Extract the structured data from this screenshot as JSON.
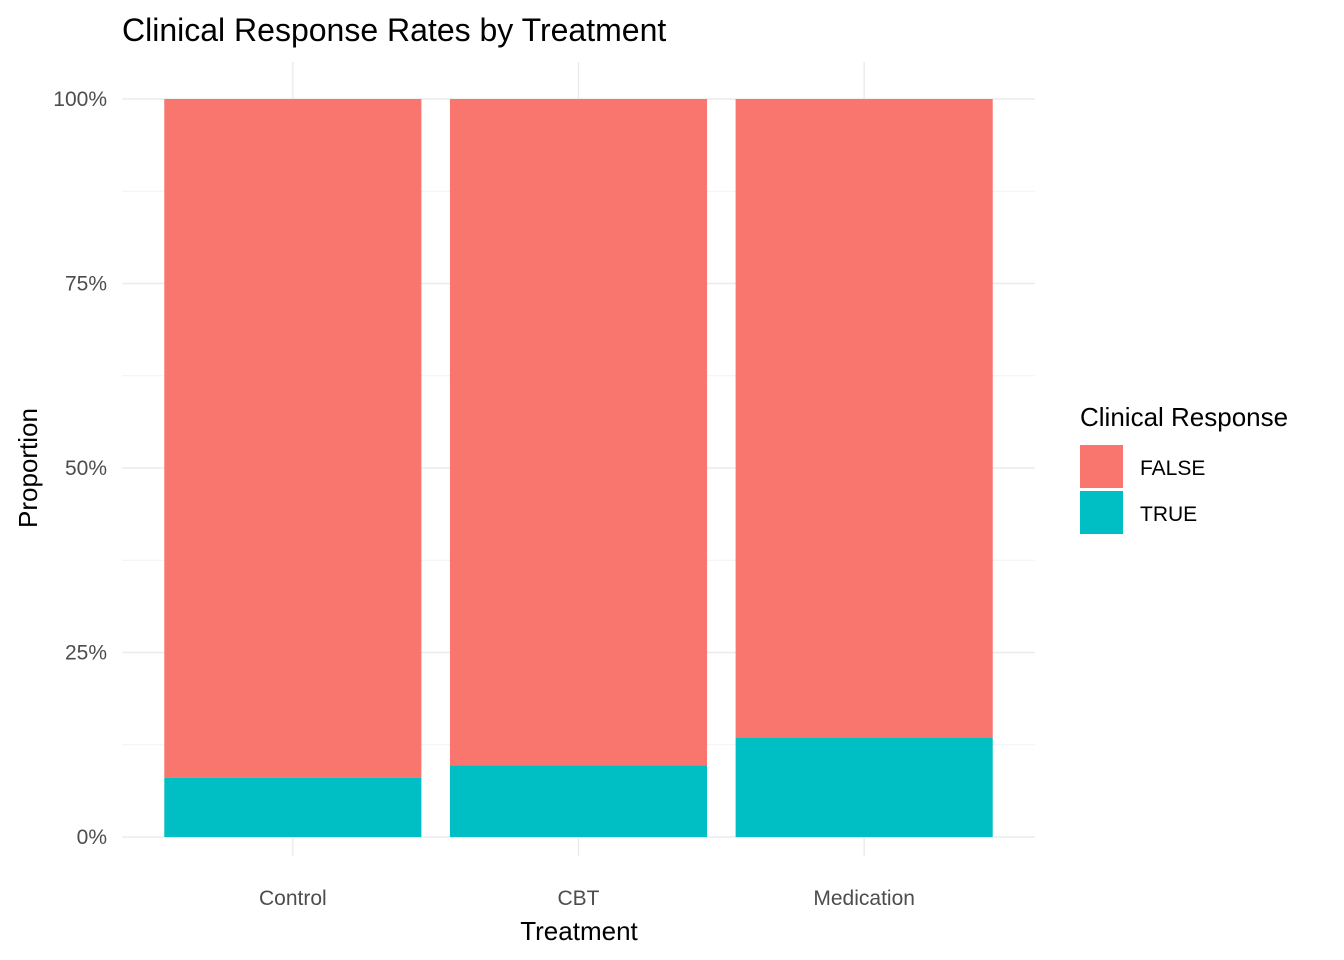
{
  "chart_data": {
    "type": "bar",
    "stacked": true,
    "normalized": true,
    "title": "Clinical Response Rates by Treatment",
    "xlabel": "Treatment",
    "ylabel": "Proportion",
    "categories": [
      "Control",
      "CBT",
      "Medication"
    ],
    "ylim": [
      0,
      1
    ],
    "yticks": [
      0,
      0.25,
      0.5,
      0.75,
      1
    ],
    "ytick_labels": [
      "0%",
      "25%",
      "50%",
      "75%",
      "100%"
    ],
    "grid": true,
    "legend": {
      "title": "Clinical Response",
      "position": "right",
      "entries": [
        "FALSE",
        "TRUE"
      ]
    },
    "series": [
      {
        "name": "TRUE",
        "color": "#00BFC4",
        "values": [
          0.08,
          0.097,
          0.135
        ]
      },
      {
        "name": "FALSE",
        "color": "#F8766D",
        "values": [
          0.92,
          0.903,
          0.865
        ]
      }
    ]
  }
}
